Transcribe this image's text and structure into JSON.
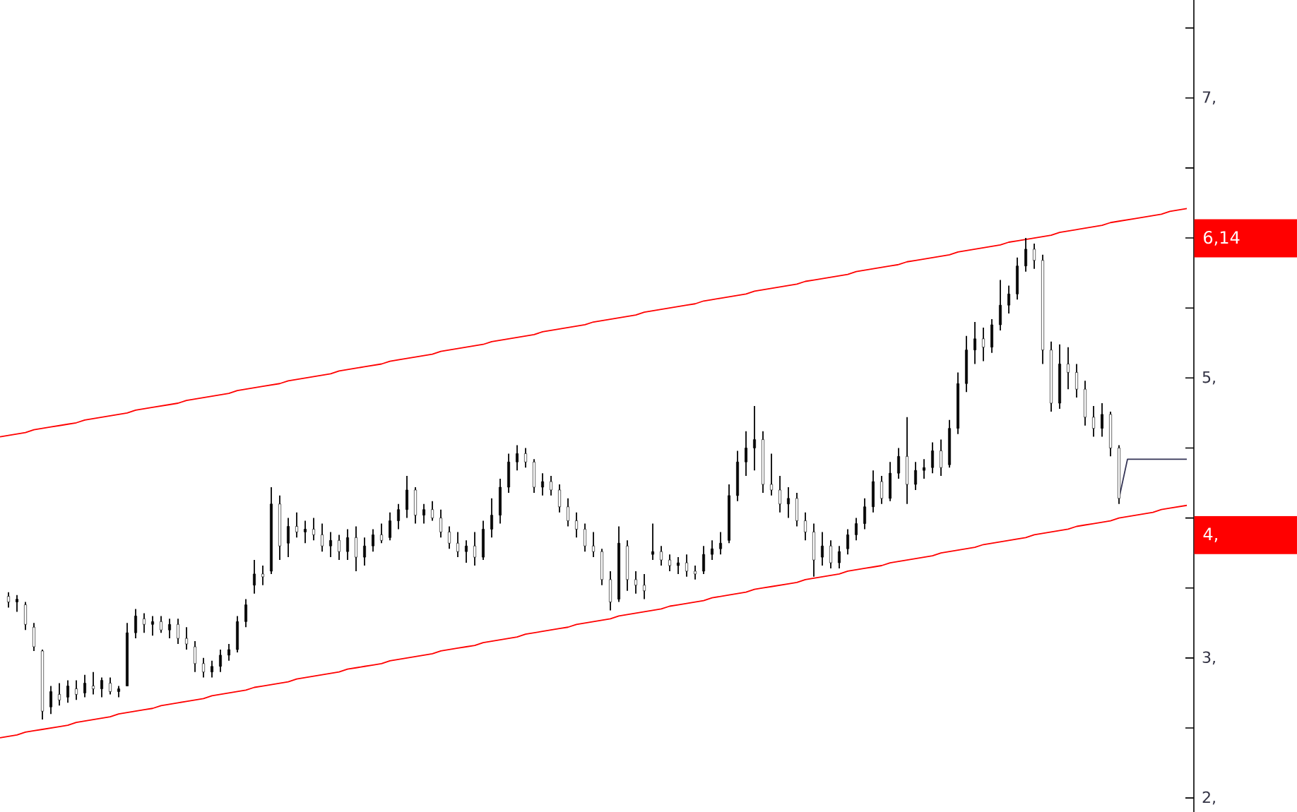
{
  "chart_data": {
    "type": "candlestick",
    "color": "#000000",
    "categories": [
      null,
      null,
      null,
      null,
      null,
      null,
      null,
      null,
      null,
      null,
      null,
      null,
      null,
      null,
      null,
      null,
      null,
      null,
      null,
      null,
      null,
      null,
      null,
      null,
      null,
      null,
      null,
      null,
      null,
      null,
      null,
      null,
      null,
      null,
      null,
      null,
      null,
      null,
      null,
      null,
      null,
      null,
      null,
      null,
      null,
      null,
      null,
      null,
      null,
      null,
      null,
      null,
      null,
      null,
      null,
      null,
      null,
      null,
      null,
      null,
      null,
      null,
      null,
      null,
      null,
      null,
      null,
      null,
      null,
      null,
      null,
      null,
      null,
      null,
      null,
      null,
      null,
      null,
      null,
      null,
      null,
      null,
      null,
      null,
      null,
      null,
      null,
      null,
      null,
      null,
      null,
      null,
      null,
      null,
      null,
      null,
      null,
      null,
      null,
      null,
      null,
      null,
      null,
      null,
      null,
      null,
      null,
      null,
      null,
      null,
      null,
      null,
      null,
      null,
      null,
      null,
      null,
      null,
      null,
      null,
      null,
      null,
      null,
      null,
      null,
      null,
      null,
      null,
      null,
      null,
      null,
      null,
      null,
      null,
      null,
      null,
      null,
      null,
      null,
      null,
      null
    ],
    "ohlc": [
      null,
      [
        3.44,
        3.47,
        3.36,
        3.4
      ],
      [
        3.4,
        3.45,
        3.33,
        3.42
      ],
      [
        3.38,
        3.4,
        3.2,
        3.24
      ],
      [
        3.22,
        3.25,
        3.05,
        3.08
      ],
      [
        3.05,
        3.06,
        2.56,
        2.62
      ],
      [
        2.65,
        2.8,
        2.6,
        2.76
      ],
      [
        2.74,
        2.82,
        2.66,
        2.7
      ],
      [
        2.72,
        2.84,
        2.68,
        2.8
      ],
      [
        2.78,
        2.84,
        2.7,
        2.74
      ],
      [
        2.75,
        2.88,
        2.72,
        2.82
      ],
      [
        2.8,
        2.9,
        2.74,
        2.78
      ],
      [
        2.78,
        2.86,
        2.72,
        2.84
      ],
      [
        2.82,
        2.86,
        2.74,
        2.76
      ],
      [
        2.76,
        2.8,
        2.72,
        2.78
      ],
      [
        2.8,
        3.25,
        2.8,
        3.18
      ],
      [
        3.18,
        3.35,
        3.14,
        3.3
      ],
      [
        3.28,
        3.32,
        3.18,
        3.24
      ],
      [
        3.24,
        3.3,
        3.16,
        3.26
      ],
      [
        3.26,
        3.3,
        3.18,
        3.2
      ],
      [
        3.2,
        3.28,
        3.14,
        3.24
      ],
      [
        3.24,
        3.28,
        3.1,
        3.14
      ],
      [
        3.14,
        3.22,
        3.06,
        3.1
      ],
      [
        3.08,
        3.12,
        2.9,
        2.96
      ],
      [
        2.96,
        3.0,
        2.86,
        2.9
      ],
      [
        2.9,
        2.98,
        2.86,
        2.94
      ],
      [
        2.94,
        3.06,
        2.9,
        3.02
      ],
      [
        3.02,
        3.1,
        2.98,
        3.06
      ],
      [
        3.06,
        3.3,
        3.04,
        3.26
      ],
      [
        3.26,
        3.42,
        3.22,
        3.38
      ],
      [
        3.52,
        3.7,
        3.46,
        3.6
      ],
      [
        3.6,
        3.66,
        3.52,
        3.58
      ],
      [
        3.62,
        4.22,
        3.6,
        4.1
      ],
      [
        4.1,
        4.16,
        3.7,
        3.8
      ],
      [
        3.82,
        4.0,
        3.72,
        3.94
      ],
      [
        3.94,
        4.04,
        3.86,
        3.9
      ],
      [
        3.9,
        3.98,
        3.82,
        3.92
      ],
      [
        3.92,
        4.0,
        3.84,
        3.88
      ],
      [
        3.88,
        3.96,
        3.76,
        3.8
      ],
      [
        3.8,
        3.9,
        3.72,
        3.84
      ],
      [
        3.84,
        3.88,
        3.7,
        3.76
      ],
      [
        3.76,
        3.92,
        3.7,
        3.86
      ],
      [
        3.86,
        3.94,
        3.62,
        3.72
      ],
      [
        3.72,
        3.86,
        3.66,
        3.8
      ],
      [
        3.8,
        3.92,
        3.76,
        3.88
      ],
      [
        3.88,
        3.96,
        3.82,
        3.84
      ],
      [
        3.86,
        4.04,
        3.84,
        3.98
      ],
      [
        3.98,
        4.1,
        3.92,
        4.06
      ],
      [
        4.06,
        4.3,
        4.0,
        4.2
      ],
      [
        4.2,
        4.22,
        3.96,
        4.02
      ],
      [
        4.02,
        4.1,
        3.96,
        4.06
      ],
      [
        4.06,
        4.12,
        3.98,
        4.0
      ],
      [
        4.0,
        4.06,
        3.86,
        3.9
      ],
      [
        3.9,
        3.94,
        3.78,
        3.82
      ],
      [
        3.82,
        3.9,
        3.72,
        3.76
      ],
      [
        3.76,
        3.84,
        3.68,
        3.8
      ],
      [
        3.8,
        3.9,
        3.66,
        3.72
      ],
      [
        3.72,
        3.98,
        3.7,
        3.92
      ],
      [
        3.92,
        4.14,
        3.86,
        4.02
      ],
      [
        4.02,
        4.28,
        3.96,
        4.22
      ],
      [
        4.22,
        4.46,
        4.18,
        4.4
      ],
      [
        4.4,
        4.52,
        4.34,
        4.46
      ],
      [
        4.46,
        4.5,
        4.36,
        4.4
      ],
      [
        4.4,
        4.42,
        4.18,
        4.22
      ],
      [
        4.22,
        4.32,
        4.16,
        4.26
      ],
      [
        4.26,
        4.3,
        4.16,
        4.2
      ],
      [
        4.2,
        4.24,
        4.04,
        4.08
      ],
      [
        4.08,
        4.14,
        3.94,
        3.98
      ],
      [
        3.98,
        4.04,
        3.86,
        3.92
      ],
      [
        3.92,
        3.96,
        3.76,
        3.8
      ],
      [
        3.8,
        3.9,
        3.72,
        3.76
      ],
      [
        3.76,
        3.78,
        3.52,
        3.56
      ],
      [
        3.56,
        3.62,
        3.34,
        3.4
      ],
      [
        3.42,
        3.94,
        3.4,
        3.82
      ],
      [
        3.8,
        3.84,
        3.48,
        3.56
      ],
      [
        3.56,
        3.62,
        3.46,
        3.52
      ],
      [
        3.52,
        3.6,
        3.42,
        3.48
      ],
      [
        3.74,
        3.96,
        3.7,
        3.76
      ],
      [
        3.76,
        3.8,
        3.66,
        3.7
      ],
      [
        3.7,
        3.74,
        3.62,
        3.66
      ],
      [
        3.66,
        3.72,
        3.6,
        3.68
      ],
      [
        3.68,
        3.74,
        3.58,
        3.62
      ],
      [
        3.62,
        3.66,
        3.56,
        3.6
      ],
      [
        3.62,
        3.8,
        3.6,
        3.74
      ],
      [
        3.74,
        3.84,
        3.7,
        3.78
      ],
      [
        3.78,
        3.9,
        3.74,
        3.82
      ],
      [
        3.84,
        4.24,
        3.82,
        4.16
      ],
      [
        4.16,
        4.48,
        4.12,
        4.4
      ],
      [
        4.4,
        4.62,
        4.3,
        4.5
      ],
      [
        4.5,
        4.8,
        4.34,
        4.56
      ],
      [
        4.56,
        4.62,
        4.18,
        4.24
      ],
      [
        4.24,
        4.46,
        4.16,
        4.2
      ],
      [
        4.2,
        4.3,
        4.04,
        4.1
      ],
      [
        4.1,
        4.22,
        4.0,
        4.14
      ],
      [
        4.14,
        4.18,
        3.94,
        3.98
      ],
      [
        3.98,
        4.04,
        3.84,
        3.9
      ],
      [
        3.9,
        3.96,
        3.58,
        3.7
      ],
      [
        3.72,
        3.9,
        3.66,
        3.8
      ],
      [
        3.8,
        3.84,
        3.64,
        3.68
      ],
      [
        3.68,
        3.8,
        3.64,
        3.76
      ],
      [
        3.78,
        3.92,
        3.74,
        3.88
      ],
      [
        3.88,
        4.0,
        3.84,
        3.96
      ],
      [
        3.96,
        4.14,
        3.92,
        4.08
      ],
      [
        4.08,
        4.34,
        4.04,
        4.26
      ],
      [
        4.26,
        4.3,
        4.1,
        4.14
      ],
      [
        4.14,
        4.4,
        4.12,
        4.32
      ],
      [
        4.32,
        4.5,
        4.28,
        4.44
      ],
      [
        4.44,
        4.72,
        4.1,
        4.24
      ],
      [
        4.24,
        4.4,
        4.2,
        4.34
      ],
      [
        4.34,
        4.42,
        4.28,
        4.36
      ],
      [
        4.36,
        4.54,
        4.32,
        4.48
      ],
      [
        4.48,
        4.56,
        4.3,
        4.36
      ],
      [
        4.38,
        4.7,
        4.36,
        4.64
      ],
      [
        4.64,
        5.04,
        4.6,
        4.96
      ],
      [
        4.96,
        5.3,
        4.9,
        5.2
      ],
      [
        5.2,
        5.4,
        5.1,
        5.28
      ],
      [
        5.28,
        5.36,
        5.12,
        5.22
      ],
      [
        5.22,
        5.42,
        5.18,
        5.38
      ],
      [
        5.38,
        5.7,
        5.34,
        5.52
      ],
      [
        5.52,
        5.66,
        5.46,
        5.6
      ],
      [
        5.6,
        5.86,
        5.56,
        5.8
      ],
      [
        5.8,
        6.0,
        5.76,
        5.92
      ],
      [
        5.92,
        5.96,
        5.78,
        5.84
      ],
      [
        5.84,
        5.88,
        5.1,
        5.2
      ],
      [
        5.2,
        5.26,
        4.76,
        4.82
      ],
      [
        4.82,
        5.24,
        4.78,
        5.1
      ],
      [
        5.1,
        5.22,
        4.92,
        5.04
      ],
      [
        5.04,
        5.1,
        4.86,
        4.92
      ],
      [
        4.92,
        4.98,
        4.66,
        4.72
      ],
      [
        4.72,
        4.8,
        4.58,
        4.64
      ],
      [
        4.64,
        4.82,
        4.58,
        4.74
      ],
      [
        4.74,
        4.76,
        4.44,
        4.5
      ],
      [
        4.5,
        4.52,
        4.1,
        4.14
      ],
      null,
      null,
      null,
      null,
      null,
      null,
      null,
      null
    ],
    "series": [
      {
        "type": "line",
        "color": "#ff0000",
        "values": [
          4.58,
          4.59,
          4.6,
          4.61,
          4.63,
          4.64,
          4.65,
          4.66,
          4.67,
          4.68,
          4.7,
          4.71,
          4.72,
          4.73,
          4.74,
          4.75,
          4.77,
          4.78,
          4.79,
          4.8,
          4.81,
          4.82,
          4.84,
          4.85,
          4.86,
          4.87,
          4.88,
          4.89,
          4.91,
          4.92,
          4.93,
          4.94,
          4.95,
          4.96,
          4.98,
          4.99,
          5.0,
          5.01,
          5.02,
          5.03,
          5.05,
          5.06,
          5.07,
          5.08,
          5.09,
          5.1,
          5.12,
          5.13,
          5.14,
          5.15,
          5.16,
          5.17,
          5.19,
          5.2,
          5.21,
          5.22,
          5.23,
          5.24,
          5.26,
          5.27,
          5.28,
          5.29,
          5.3,
          5.31,
          5.33,
          5.34,
          5.35,
          5.36,
          5.37,
          5.38,
          5.4,
          5.41,
          5.42,
          5.43,
          5.44,
          5.45,
          5.47,
          5.48,
          5.49,
          5.5,
          5.51,
          5.52,
          5.53,
          5.55,
          5.56,
          5.57,
          5.58,
          5.59,
          5.6,
          5.62,
          5.63,
          5.64,
          5.65,
          5.66,
          5.67,
          5.69,
          5.7,
          5.71,
          5.72,
          5.73,
          5.74,
          5.76,
          5.77,
          5.78,
          5.79,
          5.8,
          5.81,
          5.83,
          5.84,
          5.85,
          5.86,
          5.87,
          5.88,
          5.9,
          5.91,
          5.92,
          5.93,
          5.94,
          5.95,
          5.97,
          5.98,
          5.99,
          6.0,
          6.01,
          6.02,
          6.04,
          6.05,
          6.06,
          6.07,
          6.08,
          6.09,
          6.11,
          6.12,
          6.13,
          6.14,
          6.15,
          6.16,
          6.17,
          6.19,
          6.2,
          6.21
        ]
      },
      {
        "type": "line",
        "color": "#ff0000",
        "values": [
          2.43,
          2.44,
          2.45,
          2.47,
          2.48,
          2.49,
          2.5,
          2.51,
          2.52,
          2.54,
          2.55,
          2.56,
          2.57,
          2.58,
          2.6,
          2.61,
          2.62,
          2.63,
          2.64,
          2.66,
          2.67,
          2.68,
          2.69,
          2.7,
          2.71,
          2.73,
          2.74,
          2.75,
          2.76,
          2.77,
          2.79,
          2.8,
          2.81,
          2.82,
          2.83,
          2.85,
          2.86,
          2.87,
          2.88,
          2.89,
          2.9,
          2.92,
          2.93,
          2.94,
          2.95,
          2.96,
          2.98,
          2.99,
          3.0,
          3.01,
          3.02,
          3.03,
          3.05,
          3.06,
          3.07,
          3.08,
          3.09,
          3.11,
          3.12,
          3.13,
          3.14,
          3.15,
          3.17,
          3.18,
          3.19,
          3.2,
          3.21,
          3.22,
          3.24,
          3.25,
          3.26,
          3.27,
          3.28,
          3.3,
          3.31,
          3.32,
          3.33,
          3.34,
          3.35,
          3.37,
          3.38,
          3.39,
          3.4,
          3.41,
          3.43,
          3.44,
          3.45,
          3.46,
          3.47,
          3.49,
          3.5,
          3.51,
          3.52,
          3.53,
          3.54,
          3.56,
          3.57,
          3.58,
          3.59,
          3.6,
          3.62,
          3.63,
          3.64,
          3.65,
          3.66,
          3.68,
          3.69,
          3.7,
          3.71,
          3.72,
          3.73,
          3.75,
          3.76,
          3.77,
          3.78,
          3.79,
          3.81,
          3.82,
          3.83,
          3.84,
          3.85,
          3.86,
          3.88,
          3.89,
          3.9,
          3.91,
          3.92,
          3.94,
          3.95,
          3.96,
          3.97,
          3.98,
          4.0,
          4.01,
          4.02,
          4.03,
          4.04,
          4.06,
          4.07,
          4.08,
          4.09
        ]
      },
      {
        "type": "line",
        "color": "#333355",
        "values": [
          null,
          null,
          null,
          null,
          null,
          null,
          null,
          null,
          null,
          null,
          null,
          null,
          null,
          null,
          null,
          null,
          null,
          null,
          null,
          null,
          null,
          null,
          null,
          null,
          null,
          null,
          null,
          null,
          null,
          null,
          null,
          null,
          null,
          null,
          null,
          null,
          null,
          null,
          null,
          null,
          null,
          null,
          null,
          null,
          null,
          null,
          null,
          null,
          null,
          null,
          null,
          null,
          null,
          null,
          null,
          null,
          null,
          null,
          null,
          null,
          null,
          null,
          null,
          null,
          null,
          null,
          null,
          null,
          null,
          null,
          null,
          null,
          null,
          null,
          null,
          null,
          null,
          null,
          null,
          null,
          null,
          null,
          null,
          null,
          null,
          null,
          null,
          null,
          null,
          null,
          null,
          null,
          null,
          null,
          null,
          null,
          null,
          null,
          null,
          null,
          null,
          null,
          null,
          null,
          null,
          null,
          null,
          null,
          null,
          null,
          null,
          null,
          null,
          null,
          null,
          null,
          null,
          null,
          null,
          null,
          null,
          null,
          null,
          null,
          null,
          null,
          null,
          null,
          null,
          null,
          null,
          null,
          4.14,
          4.42,
          4.42,
          4.42,
          4.42,
          4.42,
          4.42,
          4.42,
          4.42
        ]
      }
    ],
    "ylim": [
      1.9,
      7.7
    ],
    "yticks": [
      {
        "value": 2,
        "label": "2,"
      },
      {
        "value": 2.5,
        "label": null
      },
      {
        "value": 3,
        "label": "3,"
      },
      {
        "value": 3.5,
        "label": null
      },
      {
        "value": 4,
        "label": null
      },
      {
        "value": 4.5,
        "label": null
      },
      {
        "value": 5,
        "label": "5,"
      },
      {
        "value": 5.5,
        "label": null
      },
      {
        "value": 6,
        "label": null
      },
      {
        "value": 6.5,
        "label": null
      },
      {
        "value": 7,
        "label": "7,"
      },
      {
        "value": 7.5,
        "label": null
      }
    ],
    "tick_labels": "y",
    "annotations": [
      "6,14",
      "4,"
    ]
  }
}
